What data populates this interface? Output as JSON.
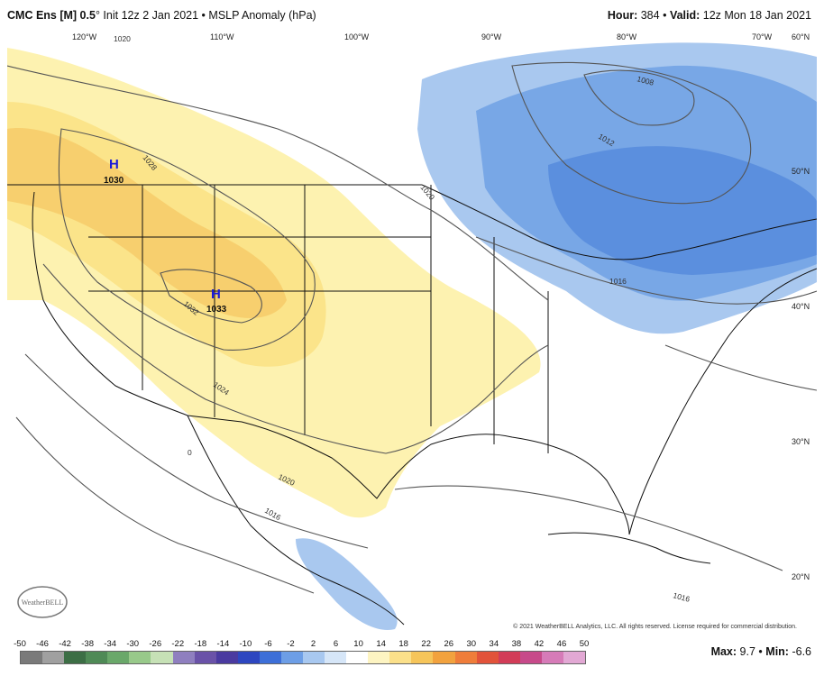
{
  "header": {
    "model": "CMC Ens [M] 0.5",
    "degree_symbol": "°",
    "init": "Init 12z 2 Jan 2021",
    "separator": "•",
    "field": "MSLP Anomaly (hPa)",
    "hour_label": "Hour:",
    "hour_value": "384",
    "valid_label": "Valid:",
    "valid_value": "12z Mon 18 Jan 2021"
  },
  "map": {
    "lon_labels": [
      "120°W",
      "110°W",
      "100°W",
      "90°W",
      "80°W",
      "70°W",
      "60°N"
    ],
    "lat_labels": [
      "50°N",
      "40°N",
      "30°N",
      "20°N"
    ],
    "isobar_labels": [
      "1020",
      "1028",
      "1032",
      "1024",
      "1020",
      "1016",
      "1008",
      "1012",
      "1020",
      "1016",
      "1016",
      "0"
    ],
    "highs": [
      {
        "symbol": "H",
        "value": "1030"
      },
      {
        "symbol": "H",
        "value": "1033"
      }
    ],
    "colors": {
      "positive_light": "#fdf2b0",
      "positive_mid": "#fbe48a",
      "positive_strong": "#f7cf6e",
      "negative_light": "#a9c8ef",
      "negative_mid": "#78a7e6",
      "negative_strong": "#5b8fde",
      "isobar": "#555555",
      "border": "#111111",
      "high_marker": "#1a1ad8"
    }
  },
  "copyright": "© 2021 WeatherBELL Analytics, LLC. All rights reserved. License required for commercial distribution.",
  "logo_text": "WeatherBELL",
  "colorbar": {
    "ticks": [
      "-50",
      "-46",
      "-42",
      "-38",
      "-34",
      "-30",
      "-26",
      "-22",
      "-18",
      "-14",
      "-10",
      "-6",
      "-2",
      "2",
      "6",
      "10",
      "14",
      "18",
      "22",
      "26",
      "30",
      "34",
      "38",
      "42",
      "46",
      "50"
    ],
    "colors": [
      "#7a7a7a",
      "#a0a0a0",
      "#3c6e45",
      "#4f8a56",
      "#6aa86a",
      "#98c98a",
      "#c6e1b6",
      "#8f7fbf",
      "#6a52a8",
      "#4a3aa0",
      "#2d46c0",
      "#3d6fd8",
      "#6d9ee6",
      "#a8c8f0",
      "#d6e6f8",
      "#ffffff",
      "#fdf4c2",
      "#fbe08a",
      "#f6c55a",
      "#f2a23e",
      "#ef7d3a",
      "#e2533a",
      "#d23c58",
      "#c74a8a",
      "#d67bb8",
      "#e2a8d4"
    ]
  },
  "maxmin": {
    "max_label": "Max:",
    "max_value": "9.7",
    "min_label": "Min:",
    "min_value": "-6.6"
  }
}
